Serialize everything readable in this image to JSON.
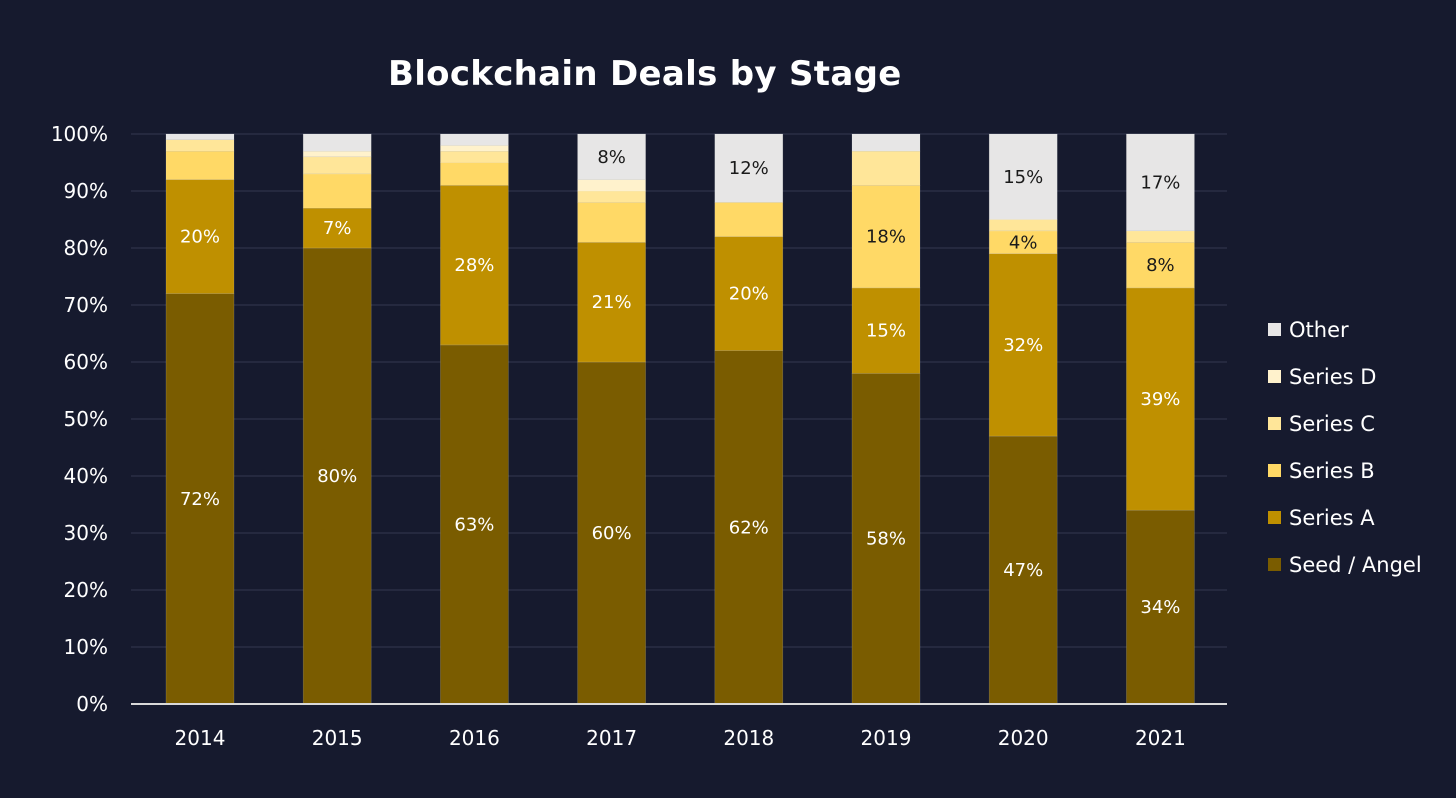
{
  "chart_data": {
    "type": "bar",
    "stacked": true,
    "title": "Blockchain Deals by Stage",
    "xlabel": "",
    "ylabel": "",
    "ylim": [
      0,
      100
    ],
    "yticks": [
      "0%",
      "10%",
      "20%",
      "30%",
      "40%",
      "50%",
      "60%",
      "70%",
      "80%",
      "90%",
      "100%"
    ],
    "grid": true,
    "legend_position": "right",
    "categories": [
      "2014",
      "2015",
      "2016",
      "2017",
      "2018",
      "2019",
      "2020",
      "2021"
    ],
    "series": [
      {
        "name": "Seed / Angel",
        "color": "#7a5c00",
        "label_color": "#ffffff",
        "values": [
          72,
          80,
          63,
          60,
          62,
          58,
          47,
          34
        ],
        "labels": [
          "72%",
          "80%",
          "63%",
          "60%",
          "62%",
          "58%",
          "47%",
          "34%"
        ]
      },
      {
        "name": "Series A",
        "color": "#bf9000",
        "label_color": "#ffffff",
        "values": [
          20,
          7,
          28,
          21,
          20,
          15,
          32,
          39
        ],
        "labels": [
          "20%",
          "7%",
          "28%",
          "21%",
          "20%",
          "15%",
          "32%",
          "39%"
        ]
      },
      {
        "name": "Series B",
        "color": "#ffd966",
        "label_color": "#1a1a1a",
        "values": [
          5,
          6,
          4,
          7,
          6,
          18,
          4,
          8
        ],
        "labels": [
          "",
          "",
          "",
          "",
          "",
          "18%",
          "4%",
          "8%"
        ]
      },
      {
        "name": "Series C",
        "color": "#ffe699",
        "label_color": "#1a1a1a",
        "values": [
          2,
          3,
          2,
          2,
          0,
          6,
          2,
          2
        ],
        "labels": [
          "",
          "",
          "",
          "",
          "",
          "",
          "",
          ""
        ]
      },
      {
        "name": "Series D",
        "color": "#fff2cc",
        "label_color": "#1a1a1a",
        "values": [
          0,
          1,
          1,
          2,
          0,
          0,
          0,
          0
        ],
        "labels": [
          "",
          "",
          "",
          "",
          "",
          "",
          "",
          ""
        ]
      },
      {
        "name": "Other",
        "color": "#e7e6e6",
        "label_color": "#1a1a1a",
        "values": [
          1,
          3,
          2,
          8,
          12,
          3,
          15,
          17
        ],
        "labels": [
          "",
          "",
          "",
          "8%",
          "12%",
          "",
          "15%",
          "17%"
        ]
      }
    ]
  }
}
